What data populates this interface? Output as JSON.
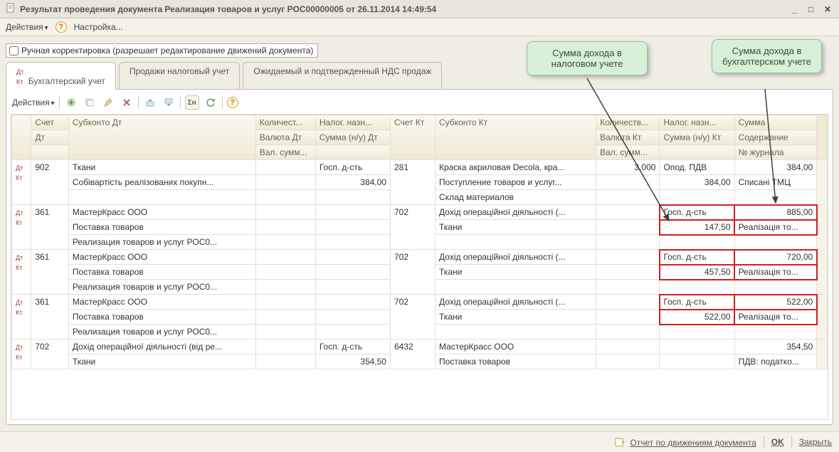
{
  "window": {
    "title": "Результат проведения документа Реализация товаров и услуг РОС00000005 от 26.11.2014 14:49:54"
  },
  "menubar": {
    "actions": "Действия",
    "settings": "Настройка..."
  },
  "manual_checkbox": {
    "label": "Ручная корректировка (разрешает редактирование движений документа)"
  },
  "tabs": {
    "t1": "Бухгалтерский учет",
    "t2": "Продажи налоговый учет",
    "t3": "Ожидаемый и подтвержденный НДС продаж"
  },
  "toolbar2": {
    "actions": "Действия"
  },
  "headers": {
    "r1": {
      "acc_dt": "Счет",
      "sub_dt": "Субконто Дт",
      "qty_dt": "Количест...",
      "naldt": "Налог. назн...",
      "acc_kt": "Счет Кт",
      "sub_kt": "Субконто Кт",
      "qty_kt": "Количеств...",
      "nalkt": "Налог. назн...",
      "sum": "Сумма"
    },
    "r2": {
      "acc_dt": "Дт",
      "cur_dt": "Валюта Дт",
      "sumnu_dt": "Сумма (н/у) Дт",
      "cur_kt": "Валюта Кт",
      "sumnu_kt": "Сумма (н/у) Кт",
      "desc": "Содержание"
    },
    "r3": {
      "valsum_dt": "Вал. сумм...",
      "valsum_kt": "Вал. сумм...",
      "journal": "№ журнала"
    }
  },
  "rows": [
    {
      "acc_dt": "902",
      "sub_dt": [
        "Ткани",
        "Собівартість реалізованих покупн..."
      ],
      "nal_dt": [
        "Госп. д-сть",
        "384,00"
      ],
      "acc_kt": "281",
      "sub_kt": [
        "Краска акриловая Decola, кра...",
        "Поступление товаров и услуг...",
        "Склад материалов"
      ],
      "qty_kt": "3,000",
      "nal_kt": [
        "Опод. ПДВ",
        "384,00"
      ],
      "sum": [
        "384,00",
        "Списані ТМЦ"
      ]
    },
    {
      "acc_dt": "361",
      "sub_dt": [
        " МастерКрасс ООО",
        "Поставка товаров",
        "Реализация товаров и услуг РОС0..."
      ],
      "nal_dt": [
        "",
        ""
      ],
      "acc_kt": "702",
      "sub_kt": [
        "Дохід операційної діяльності (...",
        "Ткани"
      ],
      "qty_kt": "",
      "nal_kt": [
        "Госп. д-сть",
        "147,50"
      ],
      "sum": [
        "885,00",
        "Реалізація то..."
      ],
      "hl": true
    },
    {
      "acc_dt": "361",
      "sub_dt": [
        " МастерКрасс ООО",
        "Поставка товаров",
        "Реализация товаров и услуг РОС0..."
      ],
      "nal_dt": [
        "",
        ""
      ],
      "acc_kt": "702",
      "sub_kt": [
        "Дохід операційної діяльності (...",
        "Ткани"
      ],
      "qty_kt": "",
      "nal_kt": [
        "Госп. д-сть",
        "457,50"
      ],
      "sum": [
        "720,00",
        "Реалізація то..."
      ],
      "hl": true
    },
    {
      "acc_dt": "361",
      "sub_dt": [
        " МастерКрасс ООО",
        "Поставка товаров",
        "Реализация товаров и услуг РОС0..."
      ],
      "nal_dt": [
        "",
        ""
      ],
      "acc_kt": "702",
      "sub_kt": [
        "Дохід операційної діяльності (...",
        "Ткани"
      ],
      "qty_kt": "",
      "nal_kt": [
        "Госп. д-сть",
        "522,00"
      ],
      "sum": [
        "522,00",
        "Реалізація то..."
      ],
      "hl": true
    },
    {
      "acc_dt": "702",
      "sub_dt": [
        "Дохід операційної діяльності (від ре...",
        "Ткани"
      ],
      "nal_dt": [
        "Госп. д-сть",
        "354,50"
      ],
      "acc_kt": "6432",
      "sub_kt": [
        " МастерКрасс ООО",
        "Поставка товаров"
      ],
      "qty_kt": "",
      "nal_kt": [
        "",
        ""
      ],
      "sum": [
        "354,50",
        "ПДВ: податко..."
      ]
    }
  ],
  "callouts": {
    "tax": "Сумма дохода в налоговом учете",
    "acc": "Сумма дохода в бухгалтерском учете"
  },
  "footer": {
    "report": "Отчет по движениям документа",
    "ok": "OK",
    "close": "Закрыть"
  },
  "colwidths": {
    "ico": 26,
    "acc_dt": 50,
    "sub_dt": 250,
    "qty_dt": 80,
    "nal_dt": 100,
    "acc_kt": 60,
    "sub_kt": 215,
    "qty_kt": 85,
    "nal_kt": 100,
    "sum": 110,
    "scroll": 14
  },
  "colors": {
    "highlight": "#d02020",
    "callout_bg": "#d8f0d8",
    "callout_border": "#90c090",
    "header_grad_top": "#fbf8ed",
    "header_grad_bot": "#efe9d6"
  }
}
